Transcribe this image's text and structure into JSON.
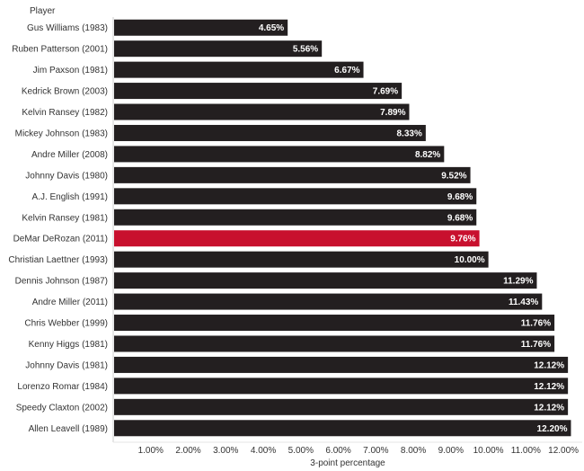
{
  "chart_data": {
    "type": "bar",
    "orientation": "horizontal",
    "row_header": "Player",
    "xlabel": "3-point percentage",
    "xlim": [
      0,
      12.5
    ],
    "x_ticks": [
      1,
      2,
      3,
      4,
      5,
      6,
      7,
      8,
      9,
      10,
      11,
      12
    ],
    "x_tick_labels": [
      "1.00%",
      "2.00%",
      "3.00%",
      "4.00%",
      "5.00%",
      "6.00%",
      "7.00%",
      "8.00%",
      "9.00%",
      "10.00%",
      "11.00%",
      "12.00%"
    ],
    "grid": false,
    "categories": [
      "Gus Williams (1983)",
      "Ruben Patterson (2001)",
      "Jim Paxson (1981)",
      "Kedrick Brown (2003)",
      "Kelvin Ransey (1982)",
      "Mickey Johnson (1983)",
      "Andre Miller (2008)",
      "Johnny Davis (1980)",
      "A.J. English (1991)",
      "Kelvin Ransey (1981)",
      "DeMar DeRozan (2011)",
      "Christian Laettner (1993)",
      "Dennis Johnson (1987)",
      "Andre Miller (2011)",
      "Chris Webber (1999)",
      "Kenny Higgs (1981)",
      "Johnny Davis (1981)",
      "Lorenzo Romar (1984)",
      "Speedy Claxton (2002)",
      "Allen Leavell (1989)"
    ],
    "values": [
      4.65,
      5.56,
      6.67,
      7.69,
      7.89,
      8.33,
      8.82,
      9.52,
      9.68,
      9.68,
      9.76,
      10.0,
      11.29,
      11.43,
      11.76,
      11.76,
      12.12,
      12.12,
      12.12,
      12.2
    ],
    "value_labels": [
      "4.65%",
      "5.56%",
      "6.67%",
      "7.69%",
      "7.89%",
      "8.33%",
      "8.82%",
      "9.52%",
      "9.68%",
      "9.68%",
      "9.76%",
      "10.00%",
      "11.29%",
      "11.43%",
      "11.76%",
      "11.76%",
      "12.12%",
      "12.12%",
      "12.12%",
      "12.20%"
    ],
    "highlight_index": 10,
    "colors": {
      "bar": "#231f20",
      "highlight": "#c8102e",
      "text": "#333333",
      "axis": "#cccccc",
      "data_label": "#ffffff"
    }
  }
}
